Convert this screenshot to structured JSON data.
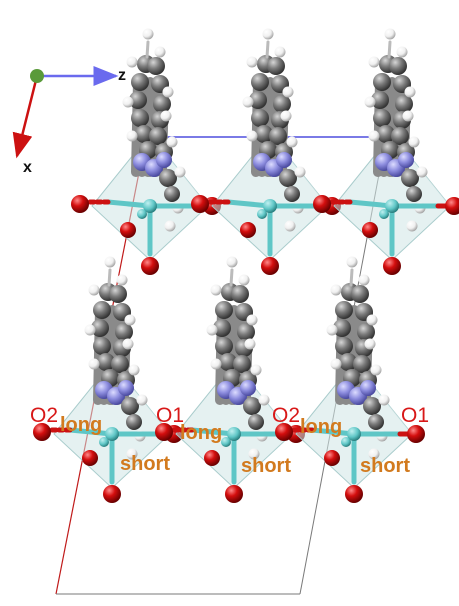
{
  "axes": {
    "z_label": "z",
    "x_label": "x"
  },
  "labels": {
    "o2": "O2",
    "o1": "O1",
    "long": "long",
    "short": "short"
  },
  "colors": {
    "oxygen": "#d40e0e",
    "nitrogen": "#8f8fe0",
    "carbon": "#7a7a7a",
    "hydrogen": "#f4f4f4",
    "metal": "#5fc6c6",
    "octahedron": "#cfe5e5",
    "label_o": "#d81818",
    "label_bond": "#d27a1e",
    "cell_a": "#c01a1a",
    "cell_b": "#2a2ad6",
    "cell_c": "#7a7a7a"
  }
}
